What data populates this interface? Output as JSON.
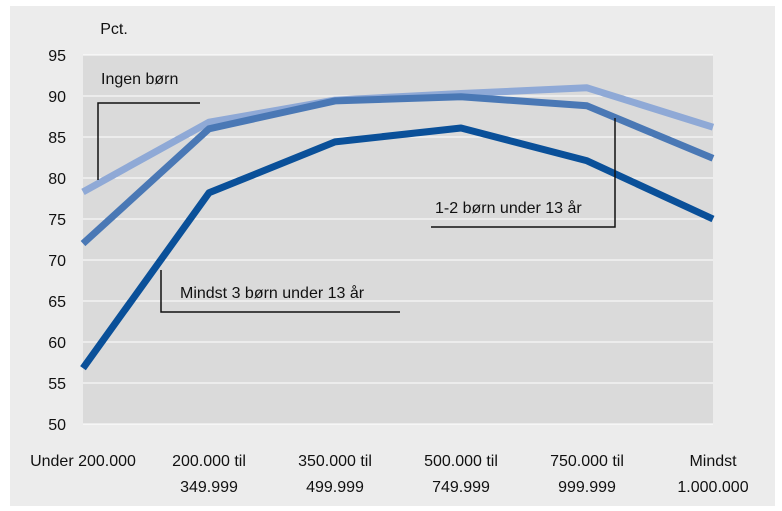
{
  "chart_data": {
    "type": "line",
    "title": "",
    "ylabel": "Pct.",
    "xlabel": "",
    "ylim": [
      50,
      95
    ],
    "yticks": [
      50,
      55,
      60,
      65,
      70,
      75,
      80,
      85,
      90,
      95
    ],
    "grid": true,
    "legend": "none",
    "categories": [
      [
        "Under 200.000"
      ],
      [
        "200.000 til",
        "349.999"
      ],
      [
        "350.000 til",
        "499.999"
      ],
      [
        "500.000 til",
        "749.999"
      ],
      [
        "750.000 til",
        "999.999"
      ],
      [
        "Mindst",
        "1.000.000"
      ]
    ],
    "series": [
      {
        "name": "Ingen børn",
        "values": [
          78.3,
          86.8,
          89.5,
          90.3,
          91.0,
          86.2
        ],
        "color": "#8fa9d6"
      },
      {
        "name": "1-2 børn under 13 år",
        "values": [
          72.0,
          86.0,
          89.4,
          89.9,
          88.8,
          82.4
        ],
        "color": "#4a78b5"
      },
      {
        "name": "Mindst 3 børn under 13 år",
        "values": [
          56.8,
          78.2,
          84.4,
          86.1,
          82.1,
          75.0
        ],
        "color": "#0a5099"
      }
    ],
    "colors": {
      "plot_bg": "#dadada",
      "grid": "#ffffff",
      "panel_bg": "#ececec",
      "leader": "#111111"
    }
  }
}
